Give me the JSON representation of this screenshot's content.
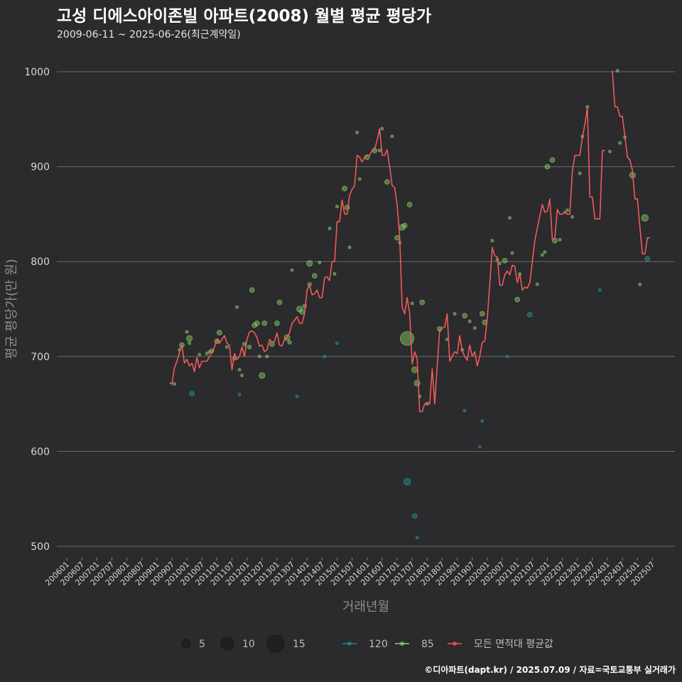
{
  "title": "고성 디에스아이존빌 아파트(2008) 월별 평균 평당가",
  "subtitle": "2009-06-11 ~ 2025-06-26(최근계약일)",
  "caption": "©디아파트(dapt.kr) / 2025.07.09 / 자료=국토교통부 실거래가",
  "colors": {
    "background": "#2b2a2c",
    "grid": "#6b6b6b",
    "series_120": "#1f8f8f",
    "series_85": "#8fd46a",
    "avg_line": "#f05a5a"
  },
  "chart_data": {
    "type": "line",
    "xlabel": "거래년월",
    "ylabel": "평균 평당가(만 원)",
    "ylim": [
      490,
      1010
    ],
    "yticks": [
      500,
      600,
      700,
      800,
      900,
      1000
    ],
    "x_range": [
      "2006-01",
      "2025-12"
    ],
    "xticks": [
      "200601",
      "200607",
      "200701",
      "200707",
      "200801",
      "200807",
      "200901",
      "200907",
      "201001",
      "201007",
      "201101",
      "201107",
      "201201",
      "201207",
      "201301",
      "201307",
      "201401",
      "201407",
      "201501",
      "201507",
      "201601",
      "201607",
      "201701",
      "201707",
      "201801",
      "201807",
      "201901",
      "201907",
      "202001",
      "202007",
      "202101",
      "202107",
      "202201",
      "202207",
      "202301",
      "202307",
      "202401",
      "202407",
      "202501",
      "202507"
    ],
    "grid": true,
    "legend": {
      "size_title": "",
      "sizes": [
        5,
        10,
        15
      ],
      "items": [
        {
          "key": "120",
          "label": "120"
        },
        {
          "key": "85",
          "label": "85"
        },
        {
          "key": "avg",
          "label": "모든 면적대 평균값"
        }
      ],
      "placement": "bottom"
    },
    "avg_line": [
      [
        "2009-06",
        672
      ],
      [
        "2009-07",
        671
      ],
      [
        "2009-08",
        688
      ],
      [
        "2009-09",
        695
      ],
      [
        "2009-10",
        704
      ],
      [
        "2009-11",
        712
      ],
      [
        "2009-12",
        693
      ],
      [
        "2010-01",
        697
      ],
      [
        "2010-02",
        690
      ],
      [
        "2010-03",
        693
      ],
      [
        "2010-04",
        684
      ],
      [
        "2010-05",
        699
      ],
      [
        "2010-06",
        688
      ],
      [
        "2010-07",
        695
      ],
      [
        "2010-08",
        695
      ],
      [
        "2010-09",
        695
      ],
      [
        "2010-10",
        700
      ],
      [
        "2010-11",
        704
      ],
      [
        "2010-12",
        710
      ],
      [
        "2011-01",
        718
      ],
      [
        "2011-02",
        714
      ],
      [
        "2011-03",
        718
      ],
      [
        "2011-04",
        722
      ],
      [
        "2011-05",
        714
      ],
      [
        "2011-06",
        712
      ],
      [
        "2011-07",
        686
      ],
      [
        "2011-08",
        703
      ],
      [
        "2011-09",
        697
      ],
      [
        "2011-10",
        700
      ],
      [
        "2011-11",
        710
      ],
      [
        "2011-12",
        700
      ],
      [
        "2012-01",
        718
      ],
      [
        "2012-02",
        726
      ],
      [
        "2012-03",
        727
      ],
      [
        "2012-04",
        725
      ],
      [
        "2012-05",
        720
      ],
      [
        "2012-06",
        711
      ],
      [
        "2012-07",
        712
      ],
      [
        "2012-08",
        705
      ],
      [
        "2012-09",
        707
      ],
      [
        "2012-10",
        718
      ],
      [
        "2012-11",
        715
      ],
      [
        "2012-12",
        716
      ],
      [
        "2013-01",
        725
      ],
      [
        "2013-02",
        712
      ],
      [
        "2013-03",
        711
      ],
      [
        "2013-04",
        718
      ],
      [
        "2013-05",
        720
      ],
      [
        "2013-06",
        725
      ],
      [
        "2013-07",
        735
      ],
      [
        "2013-08",
        738
      ],
      [
        "2013-09",
        742
      ],
      [
        "2013-10",
        735
      ],
      [
        "2013-11",
        735
      ],
      [
        "2013-12",
        745
      ],
      [
        "2014-01",
        770
      ],
      [
        "2014-02",
        775
      ],
      [
        "2014-03",
        765
      ],
      [
        "2014-04",
        766
      ],
      [
        "2014-05",
        770
      ],
      [
        "2014-06",
        762
      ],
      [
        "2014-07",
        762
      ],
      [
        "2014-08",
        783
      ],
      [
        "2014-09",
        784
      ],
      [
        "2014-10",
        780
      ],
      [
        "2014-11",
        800
      ],
      [
        "2014-12",
        800
      ],
      [
        "2015-01",
        842
      ],
      [
        "2015-02",
        842
      ],
      [
        "2015-03",
        865
      ],
      [
        "2015-04",
        850
      ],
      [
        "2015-05",
        850
      ],
      [
        "2015-06",
        870
      ],
      [
        "2015-07",
        876
      ],
      [
        "2015-08",
        880
      ],
      [
        "2015-09",
        912
      ],
      [
        "2015-10",
        910
      ],
      [
        "2015-11",
        905
      ],
      [
        "2015-12",
        910
      ],
      [
        "2016-01",
        912
      ],
      [
        "2016-02",
        912
      ],
      [
        "2016-03",
        917
      ],
      [
        "2016-04",
        918
      ],
      [
        "2016-05",
        928
      ],
      [
        "2016-06",
        940
      ],
      [
        "2016-07",
        912
      ],
      [
        "2016-08",
        912
      ],
      [
        "2016-09",
        918
      ],
      [
        "2016-10",
        900
      ],
      [
        "2016-11",
        880
      ],
      [
        "2016-12",
        878
      ],
      [
        "2017-01",
        860
      ],
      [
        "2017-02",
        826
      ],
      [
        "2017-03",
        752
      ],
      [
        "2017-04",
        745
      ],
      [
        "2017-05",
        762
      ],
      [
        "2017-06",
        745
      ],
      [
        "2017-07",
        692
      ],
      [
        "2017-08",
        705
      ],
      [
        "2017-09",
        698
      ],
      [
        "2017-10",
        642
      ],
      [
        "2017-11",
        642
      ],
      [
        "2017-12",
        650
      ],
      [
        "2018-01",
        652
      ],
      [
        "2018-02",
        650
      ],
      [
        "2018-03",
        687
      ],
      [
        "2018-04",
        650
      ],
      [
        "2018-05",
        690
      ],
      [
        "2018-06",
        728
      ],
      [
        "2018-07",
        730
      ],
      [
        "2018-08",
        731
      ],
      [
        "2018-09",
        745
      ],
      [
        "2018-10",
        695
      ],
      [
        "2018-11",
        700
      ],
      [
        "2018-12",
        705
      ],
      [
        "2019-01",
        703
      ],
      [
        "2019-02",
        722
      ],
      [
        "2019-03",
        706
      ],
      [
        "2019-04",
        700
      ],
      [
        "2019-05",
        696
      ],
      [
        "2019-06",
        712
      ],
      [
        "2019-07",
        700
      ],
      [
        "2019-08",
        705
      ],
      [
        "2019-09",
        690
      ],
      [
        "2019-10",
        700
      ],
      [
        "2019-11",
        715
      ],
      [
        "2019-12",
        716
      ],
      [
        "2020-01",
        740
      ],
      [
        "2020-02",
        776
      ],
      [
        "2020-03",
        815
      ],
      [
        "2020-04",
        806
      ],
      [
        "2020-05",
        805
      ],
      [
        "2020-06",
        775
      ],
      [
        "2020-07",
        775
      ],
      [
        "2020-08",
        786
      ],
      [
        "2020-09",
        790
      ],
      [
        "2020-10",
        786
      ],
      [
        "2020-11",
        796
      ],
      [
        "2020-12",
        795
      ],
      [
        "2021-01",
        778
      ],
      [
        "2021-02",
        787
      ],
      [
        "2021-03",
        770
      ],
      [
        "2021-04",
        773
      ],
      [
        "2021-05",
        772
      ],
      [
        "2021-06",
        778
      ],
      [
        "2021-07",
        800
      ],
      [
        "2021-08",
        822
      ],
      [
        "2021-09",
        835
      ],
      [
        "2021-10",
        848
      ],
      [
        "2021-11",
        860
      ],
      [
        "2021-12",
        852
      ],
      [
        "2022-01",
        853
      ],
      [
        "2022-02",
        866
      ],
      [
        "2022-03",
        823
      ],
      [
        "2022-04",
        825
      ],
      [
        "2022-05",
        855
      ],
      [
        "2022-06",
        850
      ],
      [
        "2022-07",
        850
      ],
      [
        "2022-08",
        852
      ],
      [
        "2022-09",
        850
      ],
      [
        "2022-10",
        850
      ],
      [
        "2022-11",
        895
      ],
      [
        "2022-12",
        912
      ],
      [
        "2023-01",
        912
      ],
      [
        "2023-02",
        912
      ],
      [
        "2023-03",
        930
      ],
      [
        "2023-04",
        945
      ],
      [
        "2023-05",
        962
      ],
      [
        "2023-06",
        868
      ],
      [
        "2023-07",
        868
      ],
      [
        "2023-08",
        845
      ],
      [
        "2023-09",
        845
      ],
      [
        "2023-10",
        845
      ],
      [
        "2023-11",
        917
      ],
      [
        "2023-12",
        917
      ],
      [
        "2024-03",
        1001
      ],
      [
        "2024-04",
        963
      ],
      [
        "2024-05",
        963
      ],
      [
        "2024-06",
        953
      ],
      [
        "2024-07",
        953
      ],
      [
        "2024-08",
        932
      ],
      [
        "2024-09",
        910
      ],
      [
        "2024-10",
        907
      ],
      [
        "2024-11",
        896
      ],
      [
        "2024-12",
        866
      ],
      [
        "2025-01",
        866
      ],
      [
        "2025-02",
        836
      ],
      [
        "2025-03",
        808
      ],
      [
        "2025-04",
        808
      ],
      [
        "2025-05",
        825
      ],
      [
        "2025-06",
        825
      ]
    ],
    "points_85": [
      [
        "2009-08",
        671,
        2
      ],
      [
        "2009-10",
        707,
        2
      ],
      [
        "2009-11",
        712,
        4
      ],
      [
        "2010-01",
        726,
        2
      ],
      [
        "2010-02",
        719,
        5
      ],
      [
        "2010-02",
        714,
        2
      ],
      [
        "2010-06",
        702,
        2
      ],
      [
        "2010-09",
        703,
        2
      ],
      [
        "2010-10",
        705,
        2
      ],
      [
        "2010-11",
        706,
        3
      ],
      [
        "2011-01",
        716,
        4
      ],
      [
        "2011-02",
        725,
        4
      ],
      [
        "2011-05",
        710,
        2
      ],
      [
        "2011-08",
        698,
        3
      ],
      [
        "2011-09",
        752,
        2
      ],
      [
        "2011-10",
        686,
        2
      ],
      [
        "2011-11",
        680,
        2
      ],
      [
        "2011-12",
        713,
        3
      ],
      [
        "2012-02",
        710,
        3
      ],
      [
        "2012-03",
        770,
        4
      ],
      [
        "2012-04",
        733,
        4
      ],
      [
        "2012-05",
        735,
        4
      ],
      [
        "2012-06",
        700,
        2
      ],
      [
        "2012-07",
        680,
        5
      ],
      [
        "2012-08",
        735,
        4
      ],
      [
        "2012-09",
        700,
        2
      ],
      [
        "2012-11",
        713,
        4
      ],
      [
        "2013-01",
        735,
        4
      ],
      [
        "2013-02",
        757,
        4
      ],
      [
        "2013-05",
        720,
        5
      ],
      [
        "2013-06",
        715,
        3
      ],
      [
        "2013-07",
        791,
        2
      ],
      [
        "2013-10",
        750,
        5
      ],
      [
        "2013-11",
        747,
        4
      ],
      [
        "2013-12",
        753,
        3
      ],
      [
        "2014-02",
        776,
        3
      ],
      [
        "2014-02",
        798,
        5
      ],
      [
        "2014-04",
        785,
        4
      ],
      [
        "2014-06",
        799,
        2
      ],
      [
        "2014-10",
        835,
        2
      ],
      [
        "2014-12",
        787,
        2
      ],
      [
        "2015-01",
        858,
        2
      ],
      [
        "2015-04",
        877,
        4
      ],
      [
        "2015-05",
        857,
        4
      ],
      [
        "2015-06",
        815,
        2
      ],
      [
        "2015-09",
        936,
        2
      ],
      [
        "2015-10",
        887,
        2
      ],
      [
        "2016-01",
        910,
        4
      ],
      [
        "2016-04",
        917,
        4
      ],
      [
        "2016-06",
        917,
        2
      ],
      [
        "2016-07",
        940,
        2
      ],
      [
        "2016-09",
        884,
        4
      ],
      [
        "2016-11",
        932,
        2
      ],
      [
        "2017-01",
        825,
        4
      ],
      [
        "2017-02",
        820,
        2
      ],
      [
        "2017-03",
        836,
        5
      ],
      [
        "2017-04",
        838,
        4
      ],
      [
        "2017-05",
        719,
        13
      ],
      [
        "2017-06",
        860,
        4
      ],
      [
        "2017-07",
        756,
        2
      ],
      [
        "2017-08",
        686,
        5
      ],
      [
        "2017-09",
        672,
        5
      ],
      [
        "2017-10",
        658,
        2
      ],
      [
        "2017-11",
        757,
        4
      ],
      [
        "2018-01",
        650,
        2
      ],
      [
        "2018-06",
        729,
        4
      ],
      [
        "2018-09",
        718,
        2
      ],
      [
        "2018-12",
        745,
        2
      ],
      [
        "2019-03",
        707,
        2
      ],
      [
        "2019-04",
        743,
        4
      ],
      [
        "2019-06",
        737,
        2
      ],
      [
        "2019-08",
        730,
        2
      ],
      [
        "2019-11",
        745,
        4
      ],
      [
        "2019-12",
        736,
        4
      ],
      [
        "2020-03",
        822,
        2
      ],
      [
        "2020-05",
        802,
        2
      ],
      [
        "2020-06",
        798,
        2
      ],
      [
        "2020-08",
        801,
        4
      ],
      [
        "2020-10",
        846,
        2
      ],
      [
        "2020-11",
        809,
        2
      ],
      [
        "2021-01",
        760,
        4
      ],
      [
        "2021-02",
        787,
        2
      ],
      [
        "2021-09",
        776,
        2
      ],
      [
        "2021-11",
        807,
        2
      ],
      [
        "2021-12",
        810,
        2
      ],
      [
        "2022-01",
        900,
        4
      ],
      [
        "2022-03",
        907,
        4
      ],
      [
        "2022-04",
        822,
        4
      ],
      [
        "2022-06",
        823,
        2
      ],
      [
        "2022-09",
        854,
        2
      ],
      [
        "2022-11",
        847,
        2
      ],
      [
        "2023-02",
        893,
        2
      ],
      [
        "2023-03",
        932,
        2
      ],
      [
        "2023-05",
        963,
        2
      ],
      [
        "2024-02",
        916,
        2
      ],
      [
        "2024-05",
        1001,
        2
      ],
      [
        "2024-06",
        925,
        2
      ],
      [
        "2024-08",
        931,
        2
      ],
      [
        "2024-11",
        891,
        5
      ],
      [
        "2025-02",
        776,
        2
      ],
      [
        "2025-04",
        846,
        6
      ]
    ],
    "points_120": [
      [
        "2010-03",
        661,
        4
      ],
      [
        "2011-10",
        660,
        2
      ],
      [
        "2013-09",
        658,
        2
      ],
      [
        "2014-08",
        700,
        2
      ],
      [
        "2015-01",
        714,
        2
      ],
      [
        "2017-05",
        568,
        6
      ],
      [
        "2017-08",
        532,
        4
      ],
      [
        "2017-09",
        509,
        2
      ],
      [
        "2019-04",
        643,
        2
      ],
      [
        "2019-10",
        605,
        2
      ],
      [
        "2019-11",
        632,
        2
      ],
      [
        "2020-09",
        700,
        2
      ],
      [
        "2021-06",
        744,
        4
      ],
      [
        "2022-08",
        852,
        2
      ],
      [
        "2023-10",
        770,
        2
      ],
      [
        "2025-05",
        803,
        4
      ]
    ]
  }
}
